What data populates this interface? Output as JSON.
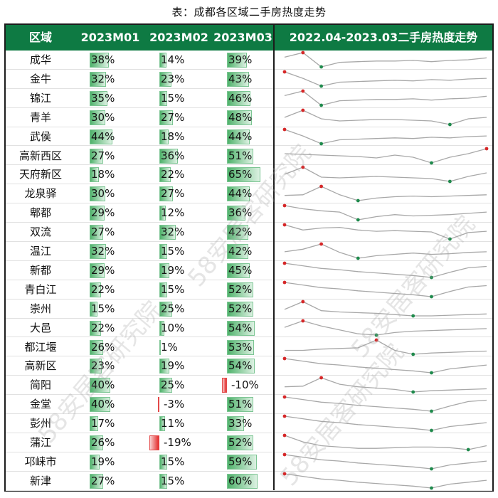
{
  "title": "表：成都各区域二手房热度走势",
  "header": {
    "region": "区域",
    "m1": "2023M01",
    "m2": "2023M02",
    "m3": "2023M03",
    "trend": "2022.04-2023.03二手房热度走势"
  },
  "watermark": "58安居客研究院",
  "colors": {
    "header_bg": "#0e7a43",
    "bar_positive": "#4fb26b",
    "bar_negative": "#e32b2b",
    "spark_line": "#a8a8a8",
    "max_marker": "#d62728",
    "min_marker": "#1f8a4c"
  },
  "chart_data": {
    "type": "table",
    "columns": [
      "区域",
      "2023M01",
      "2023M02",
      "2023M03",
      "2022.04-2023.03二手房热度走势"
    ],
    "rows": [
      {
        "region": "成华",
        "m1": 38,
        "m2": 14,
        "m3": 39,
        "trend": [
          3,
          10,
          -12,
          -5,
          -4,
          -3,
          -3,
          -2,
          -4,
          -2,
          -1,
          2
        ]
      },
      {
        "region": "金牛",
        "m1": 32,
        "m2": 23,
        "m3": 43,
        "trend": [
          10,
          0,
          -12,
          -6,
          -5,
          -4,
          -3,
          -4,
          -2,
          -3,
          -1,
          0
        ]
      },
      {
        "region": "锦江",
        "m1": 35,
        "m2": 15,
        "m3": 46,
        "trend": [
          3,
          10,
          -12,
          -5,
          -4,
          -3,
          -3,
          -2,
          -4,
          -2,
          -1,
          2
        ]
      },
      {
        "region": "青羊",
        "m1": 30,
        "m2": 27,
        "m3": 48,
        "trend": [
          0,
          10,
          -2,
          -5,
          -4,
          -3,
          -3,
          -4,
          -5,
          -10,
          -2,
          0
        ]
      },
      {
        "region": "武侯",
        "m1": 44,
        "m2": 18,
        "m3": 44,
        "trend": [
          10,
          0,
          -12,
          -6,
          -5,
          -4,
          -3,
          -4,
          -2,
          -3,
          -1,
          0
        ]
      },
      {
        "region": "高新西区",
        "m1": 27,
        "m2": 36,
        "m3": 51,
        "trend": [
          3,
          2,
          1,
          0,
          -1,
          -3,
          1,
          -2,
          -10,
          -2,
          3,
          10
        ]
      },
      {
        "region": "天府新区",
        "m1": 18,
        "m2": 22,
        "m3": 65,
        "trend": [
          0,
          10,
          -4,
          -5,
          -4,
          -3,
          -4,
          -5,
          -6,
          -10,
          -3,
          2
        ]
      },
      {
        "region": "龙泉驿",
        "m1": 30,
        "m2": 27,
        "m3": 44,
        "trend": [
          -4,
          -3,
          10,
          -3,
          -12,
          -8,
          -6,
          -5,
          -6,
          -5,
          -4,
          -3
        ]
      },
      {
        "region": "郫都",
        "m1": 29,
        "m2": 12,
        "m3": 36,
        "trend": [
          10,
          5,
          2,
          0,
          -12,
          -7,
          -4,
          -6,
          -5,
          -4,
          -2,
          0
        ]
      },
      {
        "region": "双流",
        "m1": 27,
        "m2": 32,
        "m3": 42,
        "trend": [
          10,
          2,
          5,
          6,
          2,
          0,
          1,
          0,
          -1,
          -12,
          -2,
          0
        ]
      },
      {
        "region": "温江",
        "m1": 32,
        "m2": 15,
        "m3": 42,
        "trend": [
          -2,
          2,
          10,
          -3,
          -12,
          -8,
          -6,
          -4,
          -6,
          -5,
          -3,
          -2
        ]
      },
      {
        "region": "新都",
        "m1": 29,
        "m2": 19,
        "m3": 45,
        "trend": [
          10,
          6,
          2,
          0,
          -3,
          -5,
          -7,
          -9,
          -12,
          -4,
          3,
          5
        ]
      },
      {
        "region": "青白江",
        "m1": 22,
        "m2": 15,
        "m3": 52,
        "trend": [
          10,
          6,
          2,
          0,
          -3,
          -5,
          -7,
          -9,
          -12,
          -4,
          3,
          5
        ]
      },
      {
        "region": "崇州",
        "m1": 15,
        "m2": 25,
        "m3": 52,
        "trend": [
          -2,
          10,
          -4,
          -6,
          -7,
          -8,
          -10,
          -12,
          -12,
          -11,
          -10,
          -9
        ]
      },
      {
        "region": "大邑",
        "m1": 22,
        "m2": 10,
        "m3": 54,
        "trend": [
          0,
          10,
          2,
          -4,
          -10,
          -12,
          -8,
          -6,
          -5,
          -4,
          -3,
          -2
        ]
      },
      {
        "region": "都江堰",
        "m1": 26,
        "m2": 1,
        "m3": 53,
        "trend": [
          -6,
          -6,
          -4,
          -3,
          -2,
          10,
          -6,
          -12,
          -10,
          -9,
          -8,
          -7
        ]
      },
      {
        "region": "高新区",
        "m1": 23,
        "m2": 19,
        "m3": 54,
        "trend": [
          10,
          6,
          2,
          0,
          -3,
          -5,
          -7,
          -9,
          -12,
          -6,
          -3,
          0
        ]
      },
      {
        "region": "简阳",
        "m1": 40,
        "m2": 25,
        "m3": -10,
        "trend": [
          -4,
          -3,
          10,
          0,
          -4,
          -6,
          -8,
          -12,
          -10,
          -9,
          -8,
          -7
        ]
      },
      {
        "region": "金堂",
        "m1": 40,
        "m2": -3,
        "m3": 51,
        "trend": [
          10,
          6,
          2,
          0,
          -3,
          -5,
          -7,
          -9,
          -12,
          -4,
          3,
          5
        ]
      },
      {
        "region": "彭州",
        "m1": 17,
        "m2": 11,
        "m3": 33,
        "trend": [
          10,
          6,
          2,
          0,
          -3,
          -5,
          -7,
          -9,
          -12,
          -6,
          -3,
          0
        ]
      },
      {
        "region": "蒲江",
        "m1": 26,
        "m2": -19,
        "m3": 52,
        "trend": [
          10,
          0,
          -6,
          -8,
          -10,
          -10,
          -9,
          -8,
          -8,
          -9,
          -12,
          -6
        ]
      },
      {
        "region": "邛崃市",
        "m1": 19,
        "m2": 15,
        "m3": 59,
        "trend": [
          10,
          6,
          2,
          0,
          -3,
          -5,
          -7,
          -9,
          -12,
          -6,
          -3,
          0
        ]
      },
      {
        "region": "新津",
        "m1": 27,
        "m2": 15,
        "m3": 60,
        "trend": [
          10,
          6,
          2,
          0,
          -3,
          -5,
          -7,
          -9,
          -12,
          -6,
          -3,
          0
        ]
      }
    ]
  }
}
